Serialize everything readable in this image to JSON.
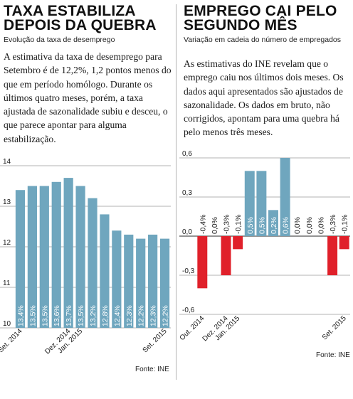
{
  "left": {
    "title_line1": "TAXA ESTABILIZA",
    "title_line2": "DEPOIS DA QUEBRA",
    "subtitle": "Evolução da taxa de desemprego",
    "body": "A estimativa da taxa de desemprego para Setembro é de 12,2%, 1,2 pontos menos do que em período homólogo. Durante os últimos quatro meses, porém, a taxa ajustada de sazonalidade subiu e desceu, o que parece apontar para alguma estabilização.",
    "source": "Fonte: INE"
  },
  "right": {
    "title_line1": "EMPREGO CAI PELO",
    "title_line2": "SEGUNDO MÊS",
    "subtitle": "Variação em cadeia do número de empregados",
    "body": "As estimativas do INE revelam que o emprego caiu nos últimos dois meses. Os dados aqui apresentados são ajustados de sazonalidade. Os dados em bruto, não corrigidos, apontam para uma quebra há pelo menos três meses.",
    "source": "Fonte: INE"
  },
  "chart_data": [
    {
      "type": "bar",
      "title": "TAXA ESTABILIZA DEPOIS DA QUEBRA",
      "subtitle": "Evolução da taxa de desemprego",
      "values": [
        13.4,
        13.5,
        13.5,
        13.6,
        13.7,
        13.5,
        13.2,
        12.8,
        12.4,
        12.3,
        12.2,
        12.3,
        12.2
      ],
      "value_labels": [
        "13,4%",
        "13,5%",
        "13,5%",
        "13,6%",
        "13,7%",
        "13,5%",
        "13,2%",
        "12,8%",
        "12,4%",
        "12,3%",
        "12,2%",
        "12,3%",
        "12,2%"
      ],
      "x_tick_labels": [
        {
          "index": 0,
          "text": "Set. 2014"
        },
        {
          "index": 4,
          "text": "Dez. 2014"
        },
        {
          "index": 5,
          "text": "Jan. 2015"
        },
        {
          "index": 12,
          "text": "Set. 2015"
        }
      ],
      "y_ticks": [
        10,
        11,
        12,
        13,
        14
      ],
      "y_tick_labels": [
        "10",
        "11",
        "12",
        "13",
        "14"
      ],
      "ylim": [
        10,
        14
      ],
      "grid": true,
      "bar_color": "#6fa6be",
      "label_color": "#ffffff",
      "source": "Fonte: INE"
    },
    {
      "type": "bar",
      "title": "EMPREGO CAI PELO SEGUNDO MÊS",
      "subtitle": "Variação em cadeia do número de empregados",
      "values": [
        -0.4,
        0.0,
        -0.3,
        -0.1,
        0.5,
        0.5,
        0.2,
        0.6,
        0.0,
        0.0,
        0.0,
        -0.3,
        -0.1
      ],
      "value_labels": [
        "-0,4%",
        "0,0%",
        "-0,3%",
        "-0,1%",
        "0,5%",
        "0,5%",
        "0,2%",
        "0,6%",
        "0,0%",
        "0,0%",
        "0,0%",
        "-0,3%",
        "-0,1%"
      ],
      "x_tick_labels": [
        {
          "index": 0,
          "text": "Out. 2014"
        },
        {
          "index": 2,
          "text": "Dez. 2014"
        },
        {
          "index": 3,
          "text": "Jan. 2015"
        },
        {
          "index": 12,
          "text": "Set. 2015"
        }
      ],
      "y_ticks": [
        -0.6,
        -0.3,
        0.0,
        0.3,
        0.6
      ],
      "y_tick_labels": [
        "-0,6",
        "-0,3",
        "0,0",
        "0,3",
        "0,6"
      ],
      "ylim": [
        -0.6,
        0.6
      ],
      "grid": true,
      "positive_color": "#6fa6be",
      "negative_color": "#e0202a",
      "source": "Fonte: INE"
    }
  ]
}
